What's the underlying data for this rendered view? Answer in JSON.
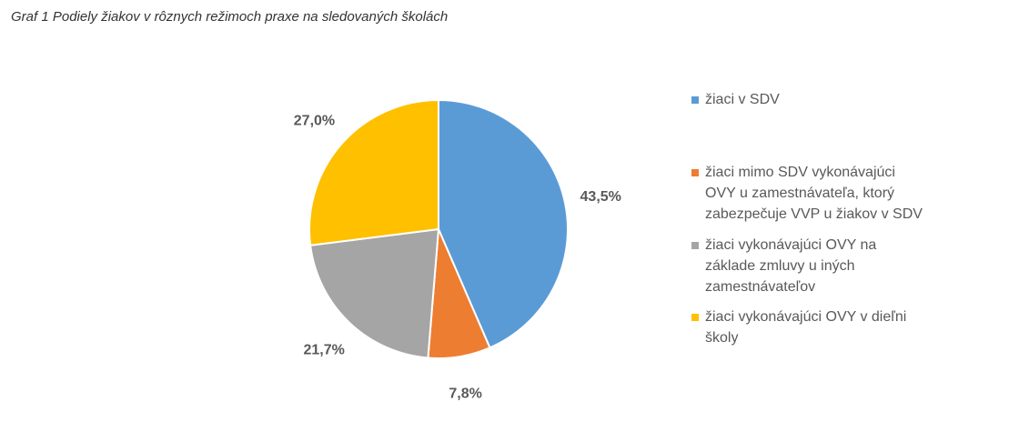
{
  "caption": "Graf 1 Podiely žiakov v rôznych režimoch praxe na sledovaných školách",
  "chart_data": {
    "type": "pie",
    "title": "",
    "legend_position": "right",
    "slices": [
      {
        "name": "žiaci v SDV",
        "value": 43.5,
        "label": "43,5%",
        "color": "#5B9BD5"
      },
      {
        "name": "žiaci  mimo SDV vykonávajúci OVY u zamestnávateľa, ktorý zabezpečuje VVP u žiakov v SDV",
        "value": 7.8,
        "label": "7,8%",
        "color": "#ED7D31"
      },
      {
        "name": "žiaci  vykonávajúci OVY na základe zmluvy u iných zamestnávateľov",
        "value": 21.7,
        "label": "21,7%",
        "color": "#A5A5A5"
      },
      {
        "name": "žiaci  vykonávajúci OVY v dieľni školy",
        "value": 27.0,
        "label": "27,0%",
        "color": "#FFC000"
      }
    ]
  },
  "legend": [
    {
      "lines": "žiaci v SDV"
    },
    {
      "lines": "žiaci  mimo SDV vykonávajúci\nOVY u zamestnávateľa, ktorý\nzabezpečuje VVP u žiakov v SDV"
    },
    {
      "lines": "žiaci  vykonávajúci OVY na\nzáklade zmluvy u iných\nzamestnávateľov"
    },
    {
      "lines": "žiaci  vykonávajúci OVY v dieľni\nškoly"
    }
  ]
}
